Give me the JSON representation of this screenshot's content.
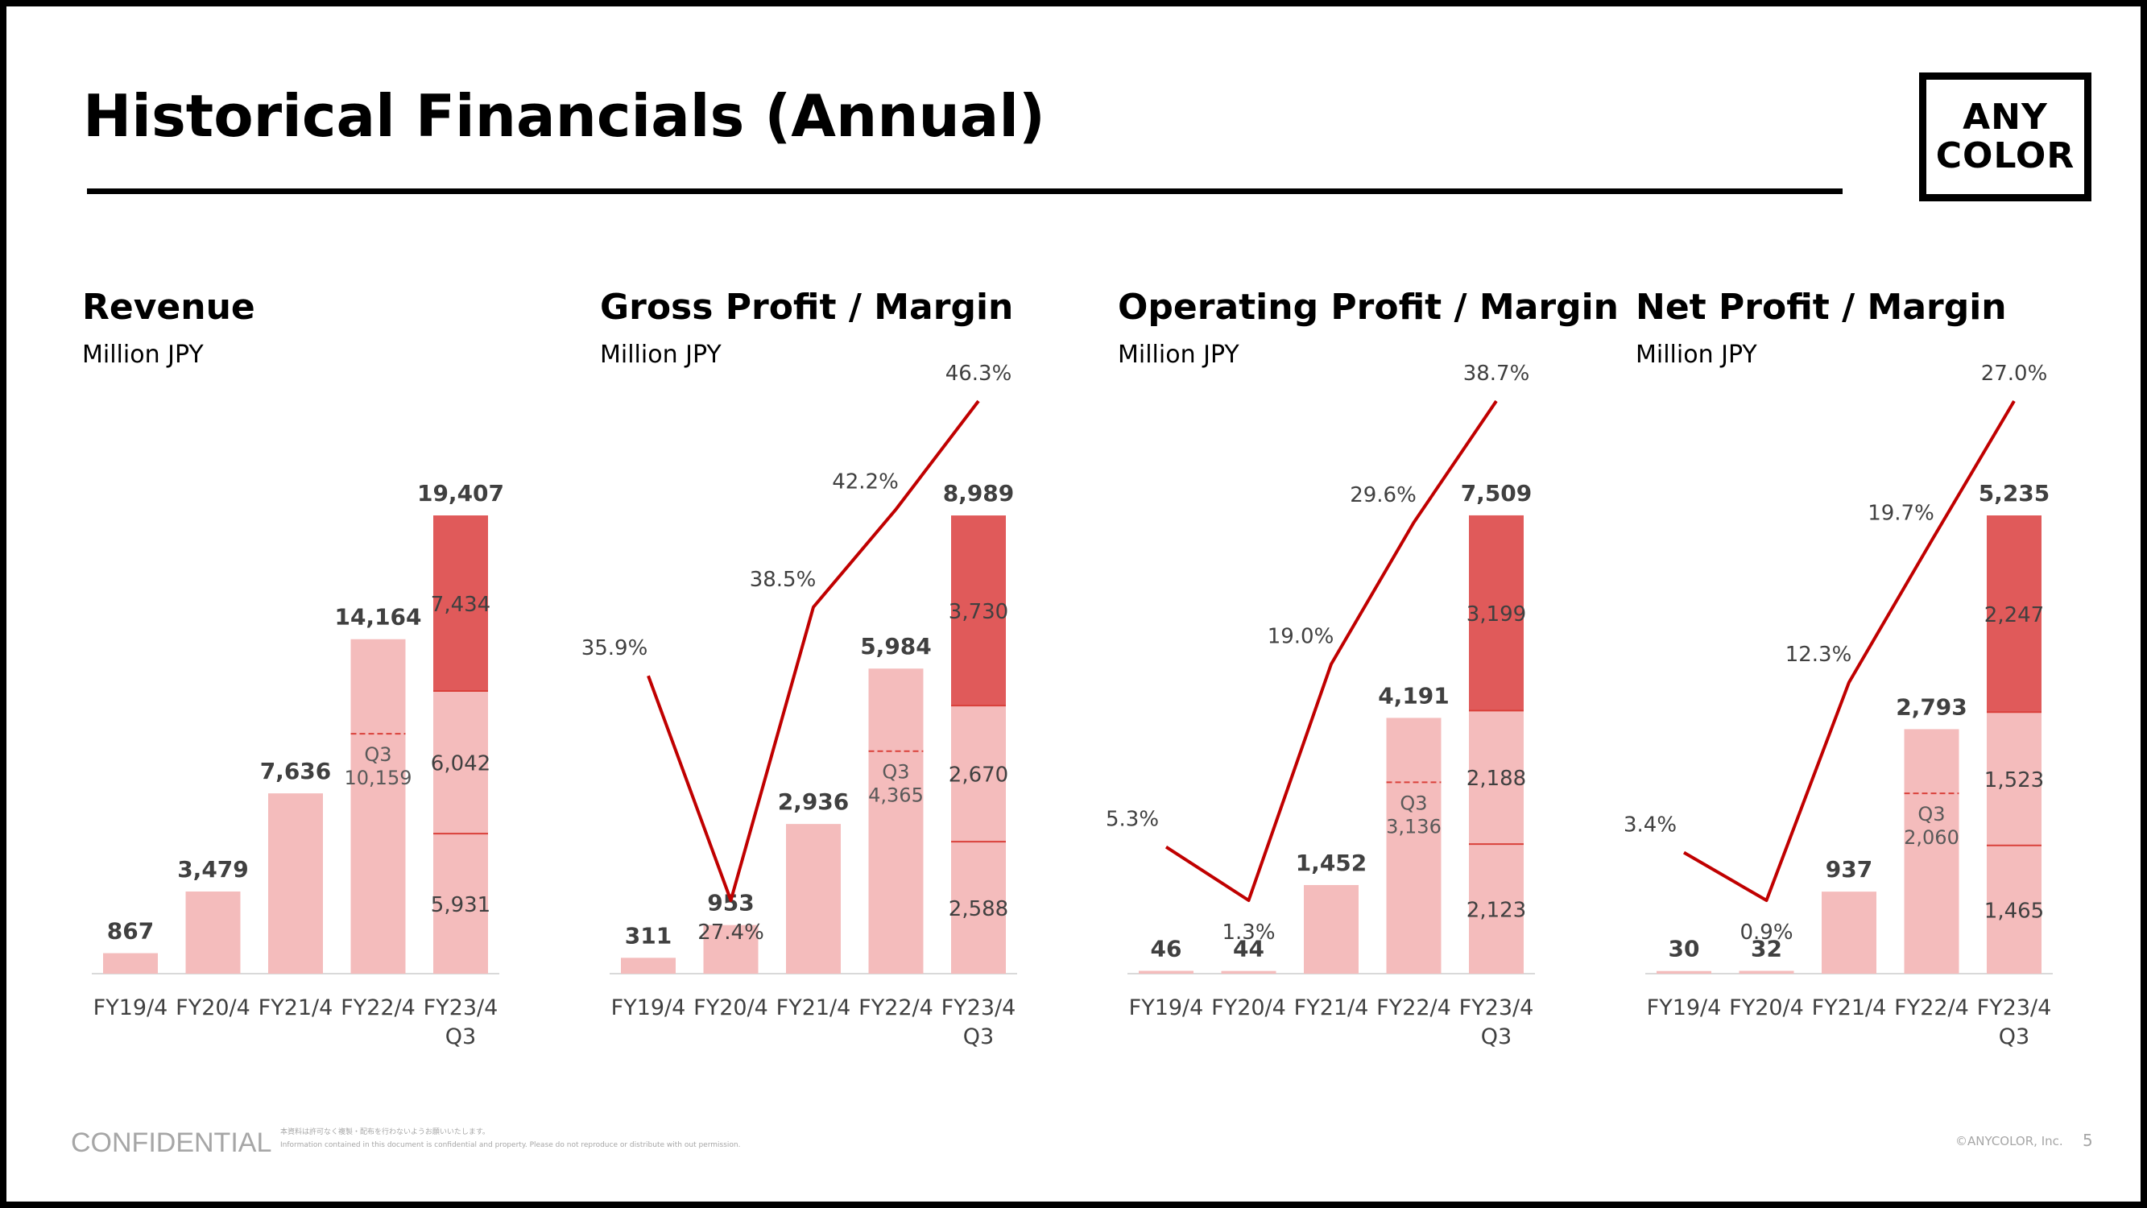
{
  "title": "Historical Financials (Annual)",
  "logo": [
    "ANY",
    "COLOR"
  ],
  "colors": {
    "bar_light": "#f4bcbc",
    "bar_dark": "#e05a5a",
    "line": "#c00000",
    "divider": "#d9403a"
  },
  "chart_data": [
    {
      "type": "bar",
      "title": "Revenue",
      "unit": "Million JPY",
      "categories": [
        "FY19/4",
        "FY20/4",
        "FY21/4",
        "FY22/4",
        "FY23/4 Q3"
      ],
      "values": [
        867,
        3479,
        7636,
        14164,
        19407
      ],
      "value_labels": [
        "867",
        "3,479",
        "7,636",
        "14,164",
        "19,407"
      ],
      "q3_marker": {
        "index": 3,
        "label": "Q3",
        "value": 10159,
        "value_label": "10,159"
      },
      "latest_breakdown": {
        "values": [
          5931,
          6042,
          7434
        ],
        "labels": [
          "5,931",
          "6,042",
          "7,434"
        ]
      }
    },
    {
      "type": "bar+line",
      "title": "Gross Profit / Margin",
      "unit": "Million JPY",
      "categories": [
        "FY19/4",
        "FY20/4",
        "FY21/4",
        "FY22/4",
        "FY23/4 Q3"
      ],
      "values": [
        311,
        953,
        2936,
        5984,
        8989
      ],
      "value_labels": [
        "311",
        "953",
        "2,936",
        "5,984",
        "8,989"
      ],
      "margins": [
        35.9,
        27.4,
        38.5,
        42.2,
        46.3
      ],
      "margin_labels": [
        "35.9%",
        "27.4%",
        "38.5%",
        "42.2%",
        "46.3%"
      ],
      "q3_marker": {
        "index": 3,
        "label": "Q3",
        "value": 4365,
        "value_label": "4,365"
      },
      "latest_breakdown": {
        "values": [
          2588,
          2670,
          3730
        ],
        "labels": [
          "2,588",
          "2,670",
          "3,730"
        ]
      }
    },
    {
      "type": "bar+line",
      "title": "Operating Profit / Margin",
      "unit": "Million JPY",
      "categories": [
        "FY19/4",
        "FY20/4",
        "FY21/4",
        "FY22/4",
        "FY23/4 Q3"
      ],
      "values": [
        46,
        44,
        1452,
        4191,
        7509
      ],
      "value_labels": [
        "46",
        "44",
        "1,452",
        "4,191",
        "7,509"
      ],
      "margins": [
        5.3,
        1.3,
        19.0,
        29.6,
        38.7
      ],
      "margin_labels": [
        "5.3%",
        "1.3%",
        "19.0%",
        "29.6%",
        "38.7%"
      ],
      "q3_marker": {
        "index": 3,
        "label": "Q3",
        "value": 3136,
        "value_label": "3,136"
      },
      "latest_breakdown": {
        "values": [
          2123,
          2188,
          3199
        ],
        "labels": [
          "2,123",
          "2,188",
          "3,199"
        ]
      }
    },
    {
      "type": "bar+line",
      "title": "Net Profit / Margin",
      "unit": "Million JPY",
      "categories": [
        "FY19/4",
        "FY20/4",
        "FY21/4",
        "FY22/4",
        "FY23/4 Q3"
      ],
      "values": [
        30,
        32,
        937,
        2793,
        5235
      ],
      "value_labels": [
        "30",
        "32",
        "937",
        "2,793",
        "5,235"
      ],
      "margins": [
        3.4,
        0.9,
        12.3,
        19.7,
        27.0
      ],
      "margin_labels": [
        "3.4%",
        "0.9%",
        "12.3%",
        "19.7%",
        "27.0%"
      ],
      "q3_marker": {
        "index": 3,
        "label": "Q3",
        "value": 2060,
        "value_label": "2,060"
      },
      "latest_breakdown": {
        "values": [
          1465,
          1523,
          2247
        ],
        "labels": [
          "1,465",
          "1,523",
          "2,247"
        ]
      }
    }
  ],
  "footer": {
    "confidential": "CONFIDENTIAL",
    "note_jp": "本資料は許可なく複製・配布を行わないようお願いいたします。",
    "note_en": "Information contained in this document is confidential and property. Please do not reproduce or distribute with out permission.",
    "copyright": "©ANYCOLOR, Inc.",
    "page": "5"
  }
}
